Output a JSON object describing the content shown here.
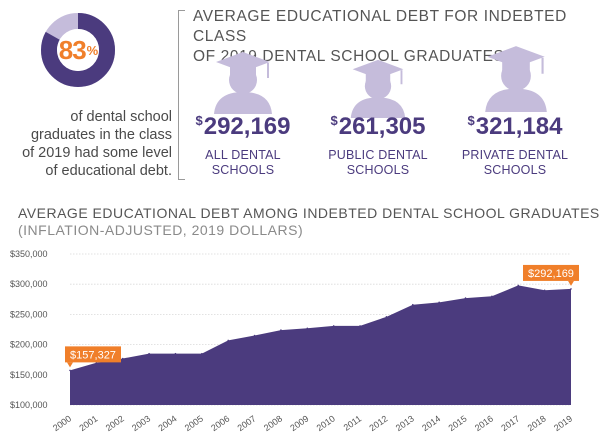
{
  "colors": {
    "accent": "#f07f2a",
    "purple": "#4b3b7e",
    "light_purple": "#c5bcdb"
  },
  "stat": {
    "percent_value": 83,
    "number": "83",
    "unit": "%",
    "description_lines": [
      "of dental school",
      "graduates in the class",
      "of 2019 had some level",
      "of educational debt."
    ]
  },
  "debt_summary": {
    "title_lines": [
      "AVERAGE EDUCATIONAL DEBT FOR INDEBTED CLASS",
      "OF 2019 DENTAL SCHOOL GRADUATES"
    ],
    "currency_symbol": "$",
    "items": [
      {
        "amount": "292,169",
        "label_lines": [
          "ALL DENTAL",
          "SCHOOLS"
        ],
        "icon": "graduate-icon"
      },
      {
        "amount": "261,305",
        "label_lines": [
          "PUBLIC DENTAL",
          "SCHOOLS"
        ],
        "icon": "graduate-icon"
      },
      {
        "amount": "321,184",
        "label_lines": [
          "PRIVATE DENTAL",
          "SCHOOLS"
        ],
        "icon": "graduate-icon"
      }
    ]
  },
  "chart_data": {
    "type": "area",
    "title": "AVERAGE EDUCATIONAL DEBT AMONG INDEBTED DENTAL SCHOOL GRADUATES",
    "subtitle": "(INFLATION-ADJUSTED, 2019 DOLLARS)",
    "categories": [
      "2000",
      "2001",
      "2002",
      "2003",
      "2004",
      "2005",
      "2006",
      "2007",
      "2008",
      "2009",
      "2010",
      "2011",
      "2012",
      "2013",
      "2014",
      "2015",
      "2016",
      "2017",
      "2018",
      "2019"
    ],
    "values": [
      157327,
      170000,
      177000,
      185000,
      185000,
      185000,
      207000,
      215000,
      224000,
      227000,
      231000,
      231000,
      246000,
      266000,
      270000,
      277000,
      280000,
      298000,
      290000,
      292169
    ],
    "ylim": [
      100000,
      350000
    ],
    "yticks": [
      100000,
      150000,
      200000,
      250000,
      300000,
      350000
    ],
    "ytick_labels": [
      "$100,000",
      "$150,000",
      "$200,000",
      "$250,000",
      "$300,000",
      "$350,000"
    ],
    "grid": true,
    "annotations": [
      {
        "year": "2000",
        "label": "$157,327"
      },
      {
        "year": "2019",
        "label": "$292,169"
      }
    ],
    "fill_color": "#4b3b7e"
  }
}
